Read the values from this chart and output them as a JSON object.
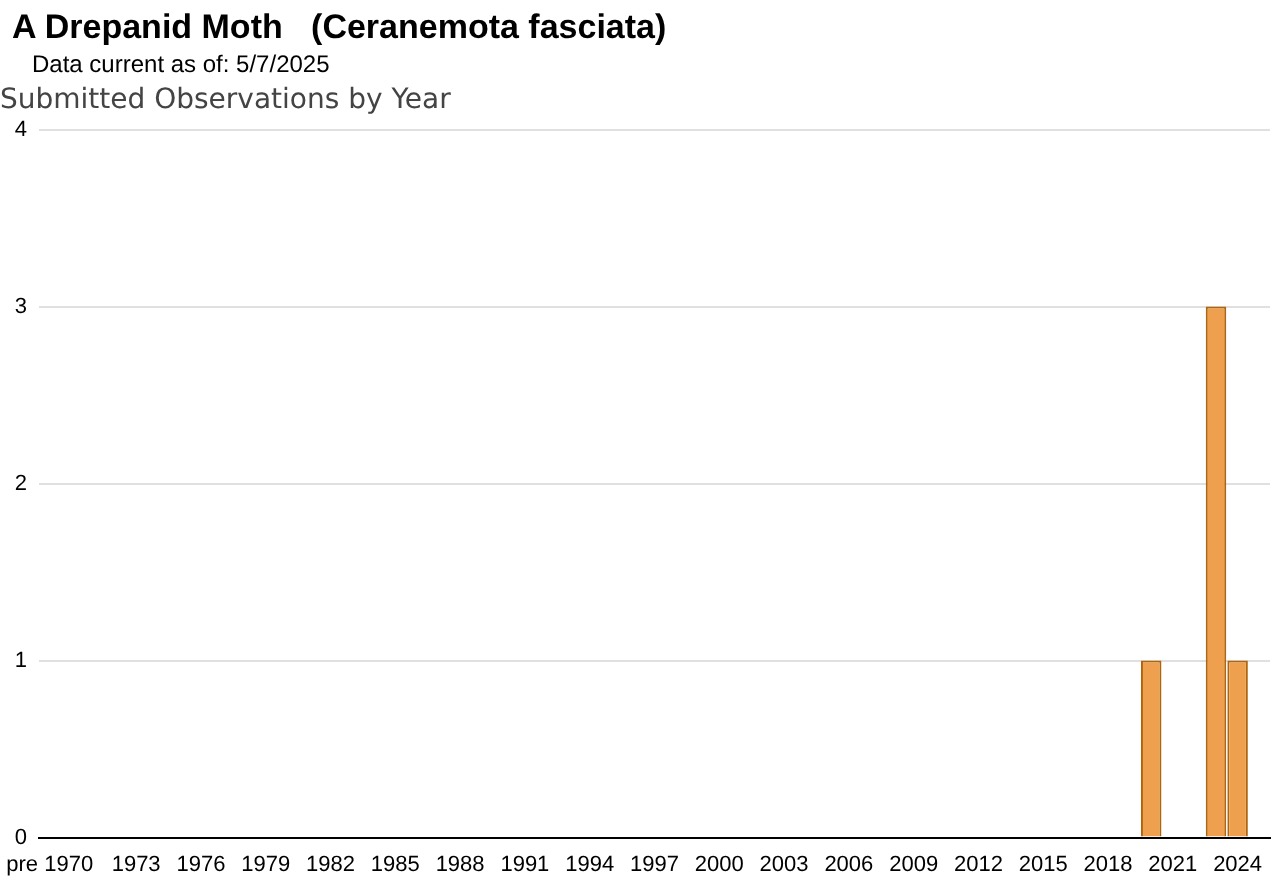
{
  "chart_data": {
    "type": "bar",
    "title": "A Drepanid Moth   (Ceranemota fasciata)",
    "subtitle": "Data current as of: 5/7/2025",
    "annotations": [
      "Submitted Observations by Year"
    ],
    "categories": [
      "pre 1970",
      null,
      null,
      null,
      "1973",
      null,
      null,
      "1976",
      null,
      null,
      "1979",
      null,
      null,
      "1982",
      null,
      null,
      "1985",
      null,
      null,
      "1988",
      null,
      null,
      "1991",
      null,
      null,
      "1994",
      null,
      null,
      "1997",
      null,
      null,
      "2000",
      null,
      null,
      "2003",
      null,
      null,
      "2006",
      null,
      null,
      "2009",
      null,
      null,
      "2012",
      null,
      null,
      "2015",
      null,
      null,
      "2018",
      null,
      null,
      "2021",
      null,
      null,
      "2024",
      null
    ],
    "values": [
      0,
      0,
      0,
      0,
      0,
      0,
      0,
      0,
      0,
      0,
      0,
      0,
      0,
      0,
      0,
      0,
      0,
      0,
      0,
      0,
      0,
      0,
      0,
      0,
      0,
      0,
      0,
      0,
      0,
      0,
      0,
      0,
      0,
      0,
      0,
      0,
      0,
      0,
      0,
      0,
      0,
      0,
      0,
      0,
      0,
      0,
      0,
      0,
      0,
      0,
      0,
      1,
      0,
      0,
      3,
      1,
      0
    ],
    "color": "#eea04e",
    "ylim": [
      0,
      4
    ],
    "yticks": [
      0,
      1,
      2,
      3,
      4
    ],
    "grid": "y",
    "legend": false
  }
}
